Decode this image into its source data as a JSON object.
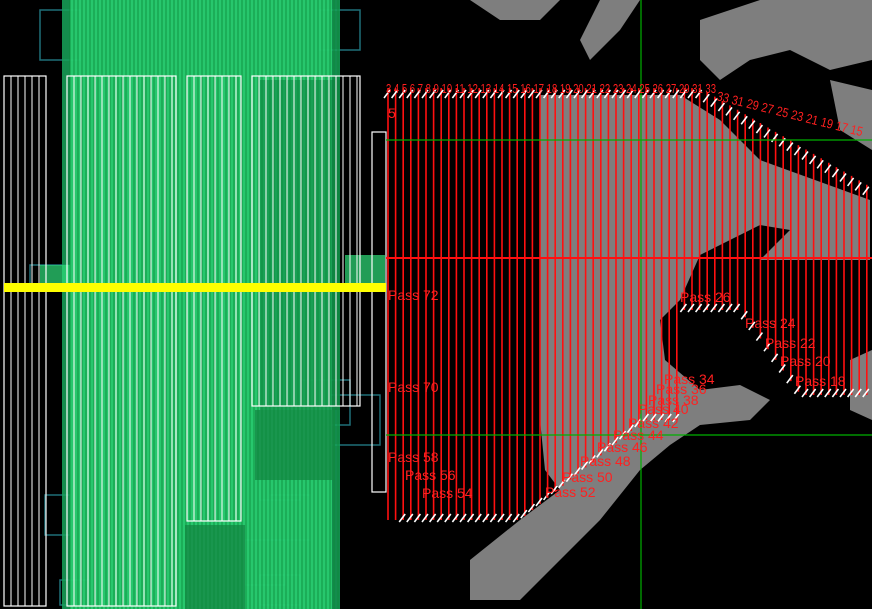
{
  "colors": {
    "background": "#000000",
    "planned_pass": "#ff1010",
    "white_pass": "#ffffff",
    "green_coverage": "#2fe07a",
    "teal_footprint": "#1f6f78",
    "current_line": "#ffff00",
    "crosshair": "#00c000",
    "terrain": "#8a8a8a"
  },
  "labels": {
    "pass_72": "Pass 72",
    "pass_70": "Pass 70",
    "pass_58": "Pass 58",
    "pass_56": "Pass 56",
    "pass_54": "Pass 54",
    "pass_52": "Pass 52",
    "pass_50": "Pass 50",
    "pass_48": "Pass 48",
    "pass_46": "Pass 46",
    "pass_44": "Pass 44",
    "pass_42": "Pass 42",
    "pass_40": "Pass 40",
    "pass_38": "Pass 38",
    "pass_36": "Pass 36",
    "pass_34": "Pass 34",
    "pass_26": "Pass 26",
    "pass_24": "Pass 24",
    "pass_22": "Pass 22",
    "pass_20": "Pass 20",
    "pass_18": "Pass 18",
    "top_numbers": "3 4 5 6 7 8 9 10 11 12 13 14 15 16 17 18 19 20 21 22 23 24 25 26 27 29 31 33",
    "right_numbers": "33 31 29 27 25 23 21 19 17 15",
    "left_marker": "5"
  }
}
